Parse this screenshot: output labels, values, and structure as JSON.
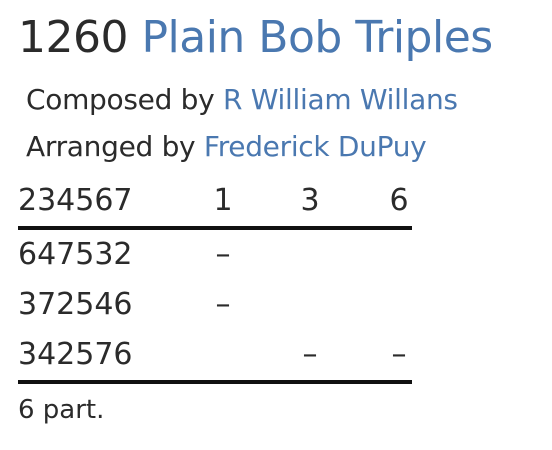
{
  "title": {
    "length": "1260",
    "method": "Plain Bob Triples"
  },
  "composer": {
    "prefix": "Composed by",
    "name": "R William Willans"
  },
  "arranger": {
    "prefix": "Arranged by",
    "name": "Frederick DuPuy"
  },
  "table": {
    "header": [
      "234567",
      "1",
      "3",
      "6"
    ],
    "rows": [
      [
        "647532",
        "–",
        "",
        ""
      ],
      [
        "372546",
        "–",
        "",
        ""
      ],
      [
        "342576",
        "",
        "–",
        "–"
      ]
    ]
  },
  "footnote": "6 part.",
  "colors": {
    "link": "#4a78b0",
    "text": "#2b2b2b",
    "rule": "#111111"
  }
}
